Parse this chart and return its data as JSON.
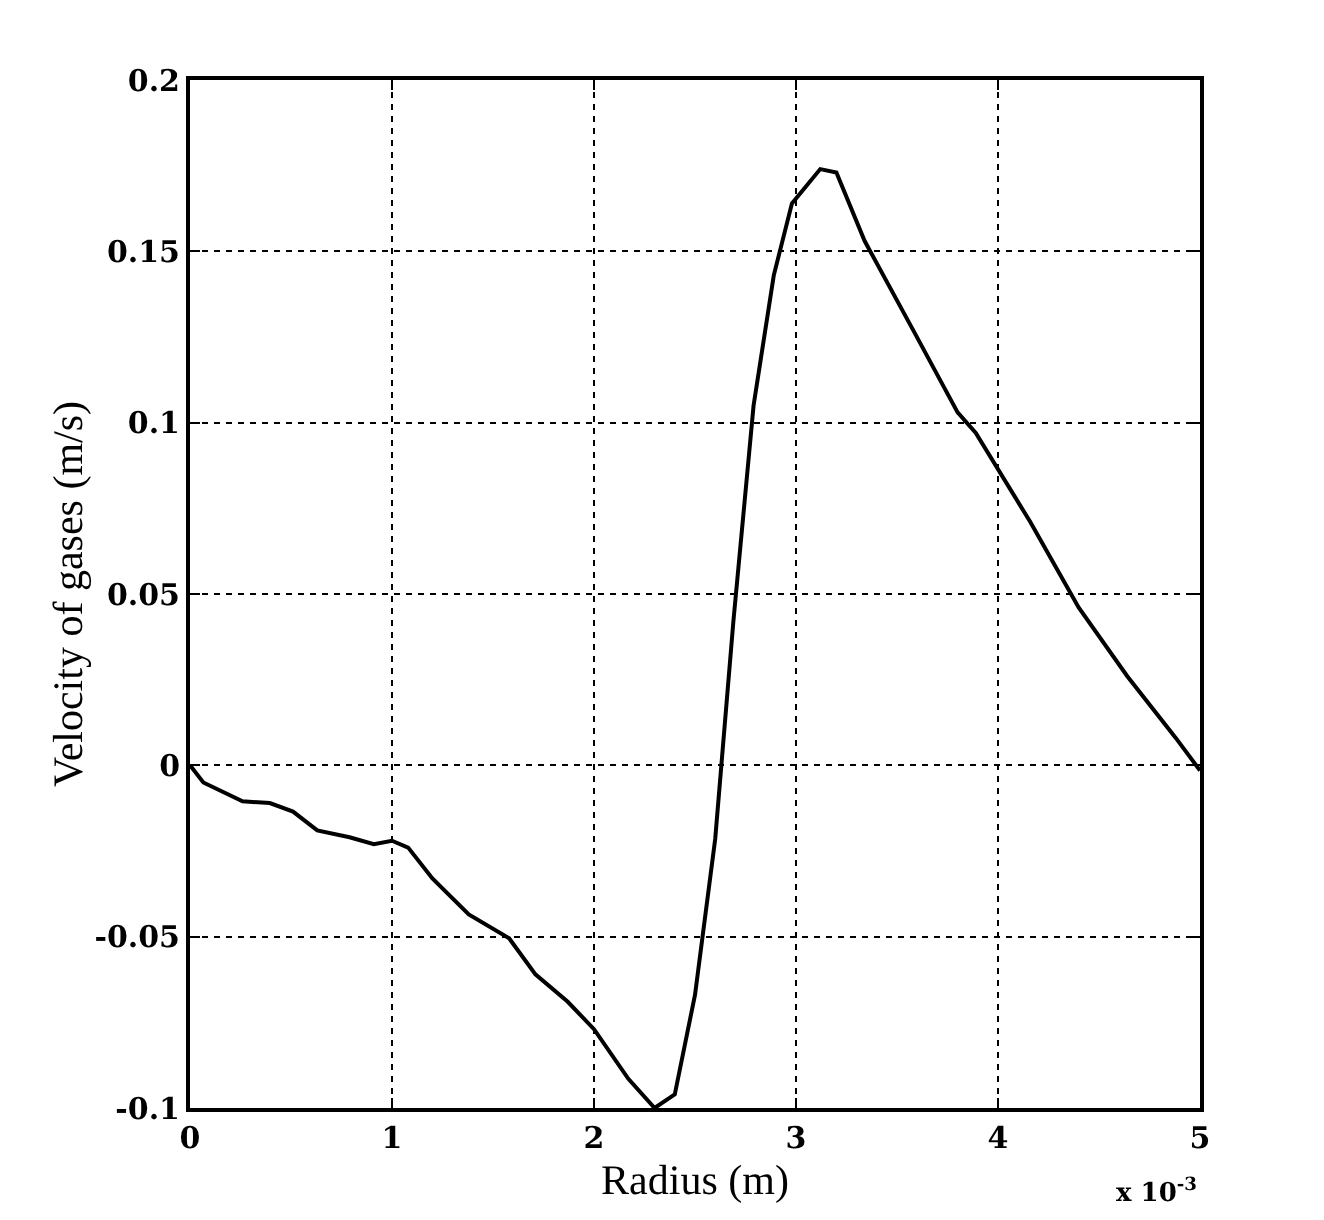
{
  "chart_data": {
    "type": "line",
    "xlabel": "Radius (m)",
    "ylabel": "Velocity of gases (m/s)",
    "annotations": [
      "x 10$^{-3}$"
    ],
    "x": [
      0,
      0.066,
      0.26,
      0.395,
      0.51,
      0.63,
      0.79,
      0.91,
      1.0,
      1.08,
      1.2,
      1.38,
      1.58,
      1.71,
      1.87,
      2.0,
      2.17,
      2.3,
      2.4,
      2.5,
      2.6,
      2.69,
      2.79,
      2.89,
      2.98,
      3.12,
      3.2,
      3.34,
      3.58,
      3.8,
      3.89,
      4.16,
      4.4,
      4.64,
      4.88,
      5.0
    ],
    "series": [
      {
        "color": "#000000",
        "values": [
          0,
          -0.005,
          -0.0105,
          -0.011,
          -0.0135,
          -0.019,
          -0.021,
          -0.023,
          -0.022,
          -0.024,
          -0.033,
          -0.0435,
          -0.0505,
          -0.061,
          -0.069,
          -0.077,
          -0.0915,
          -0.1,
          -0.096,
          -0.067,
          -0.0215,
          0.042,
          0.105,
          0.143,
          0.164,
          0.174,
          0.173,
          0.153,
          0.127,
          0.103,
          0.097,
          0.071,
          0.046,
          0.026,
          0.008,
          -0.0015
        ]
      }
    ],
    "xlim": [
      0,
      5
    ],
    "xticks": [
      0,
      1,
      2,
      3,
      4,
      5
    ],
    "ylim": [
      -0.1,
      0.2
    ],
    "yticks": [
      -0.1,
      -0.05,
      0,
      0.05,
      0.1,
      0.15,
      0.2
    ],
    "grid": true,
    "marker": "none",
    "line_style": "solid"
  }
}
